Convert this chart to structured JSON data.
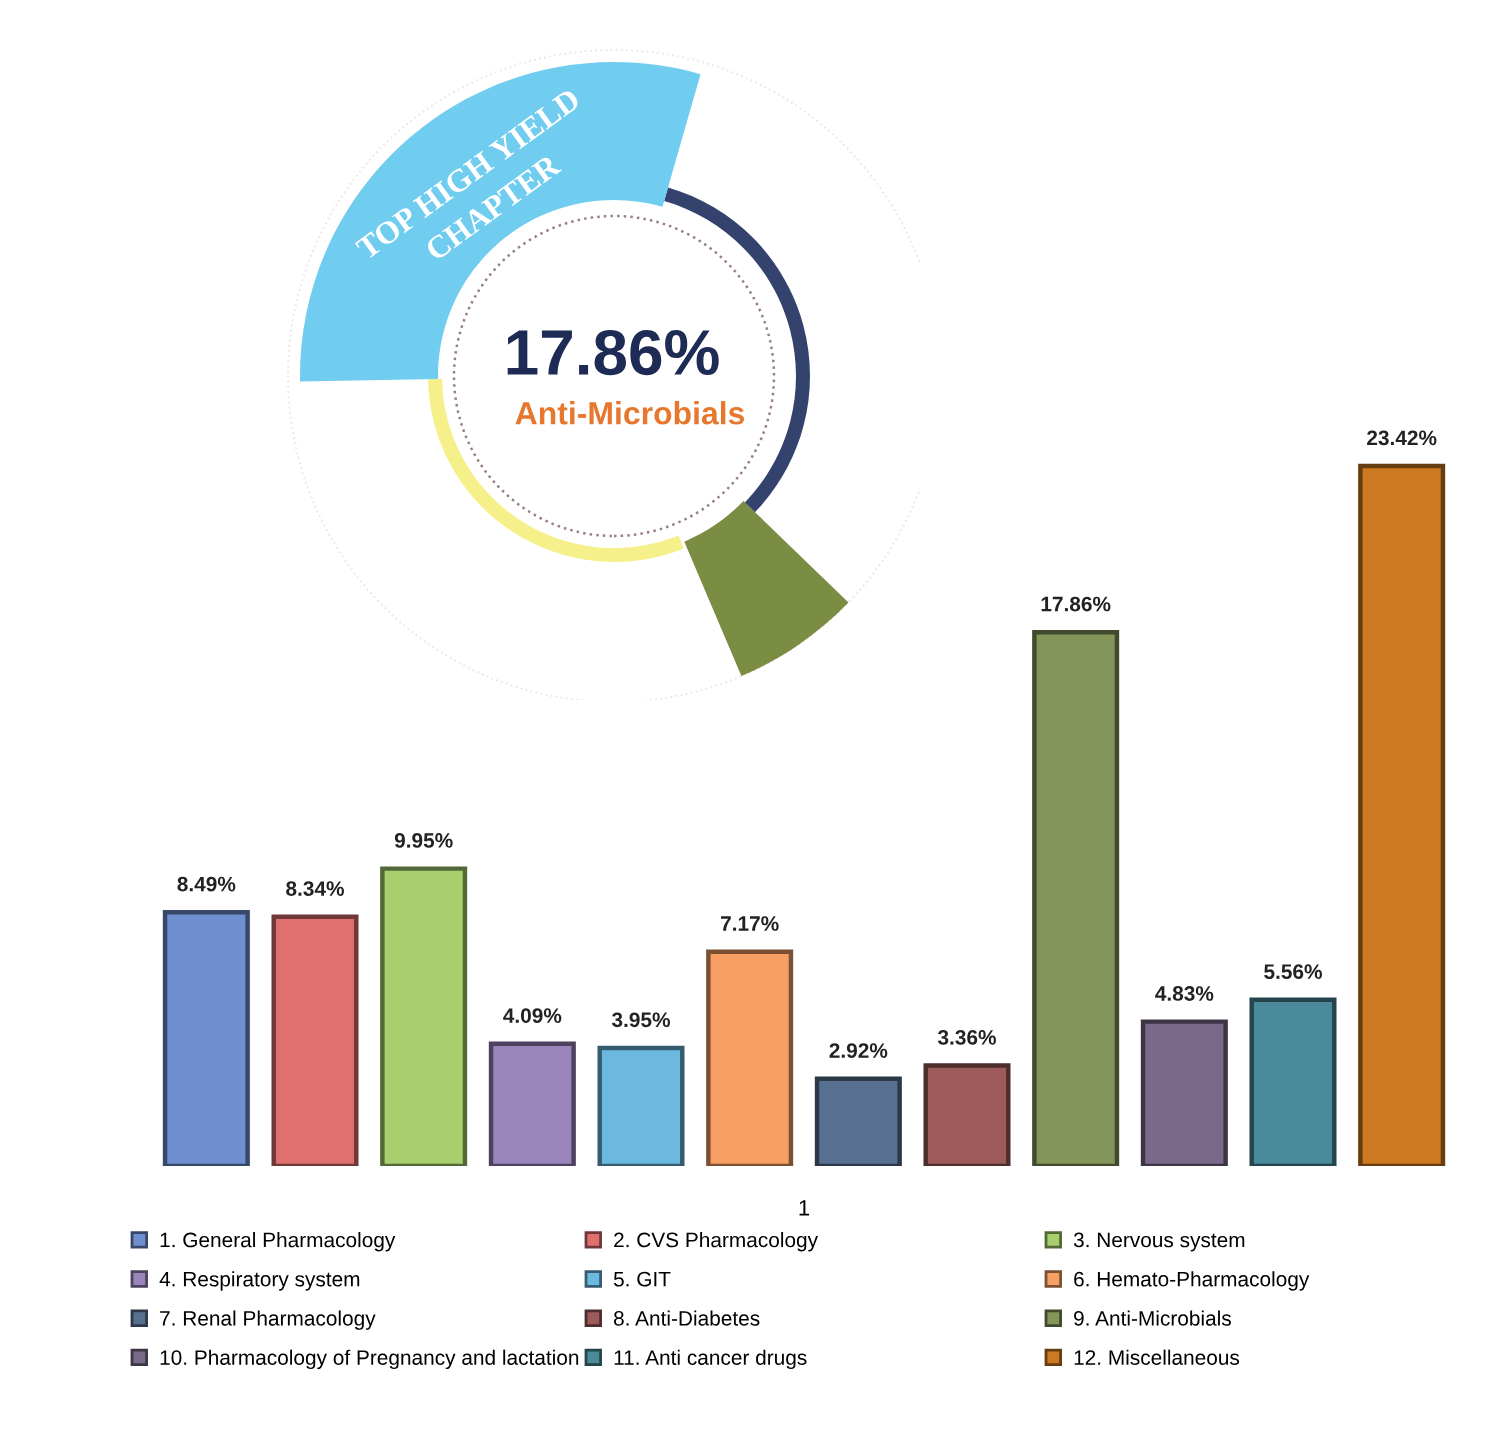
{
  "chart_data": {
    "type": "bar",
    "stacked": true,
    "xlabel": "1",
    "categories": [
      null,
      null,
      null,
      null,
      null,
      null,
      null,
      null,
      null,
      null,
      null,
      null
    ],
    "series": [
      {
        "name": "1. General Pharmacology",
        "color": "#6f8fd0",
        "values": [
          8.49,
          null,
          null,
          null,
          null,
          null,
          null,
          null,
          null,
          null,
          null,
          null
        ],
        "value_labels": [
          "8.49%",
          null,
          null,
          null,
          null,
          null,
          null,
          null,
          null,
          null,
          null,
          null
        ]
      },
      {
        "name": "2. CVS Pharmacology",
        "color": "#e07070",
        "values": [
          null,
          8.34,
          null,
          null,
          null,
          null,
          null,
          null,
          null,
          null,
          null,
          null
        ],
        "value_labels": [
          null,
          "8.34%",
          null,
          null,
          null,
          null,
          null,
          null,
          null,
          null,
          null,
          null
        ]
      },
      {
        "name": "3. Nervous system",
        "color": "#a8cf6e",
        "values": [
          null,
          null,
          9.95,
          null,
          null,
          null,
          null,
          null,
          null,
          null,
          null,
          null
        ],
        "value_labels": [
          null,
          null,
          "9.95%",
          null,
          null,
          null,
          null,
          null,
          null,
          null,
          null,
          null
        ]
      },
      {
        "name": "4. Respiratory system",
        "color": "#9a86bb",
        "values": [
          null,
          null,
          null,
          4.09,
          null,
          null,
          null,
          null,
          null,
          null,
          null,
          null
        ],
        "value_labels": [
          null,
          null,
          null,
          "4.09%",
          null,
          null,
          null,
          null,
          null,
          null,
          null,
          null
        ]
      },
      {
        "name": "5. GIT",
        "color": "#6cb9e0",
        "values": [
          null,
          null,
          null,
          null,
          3.95,
          null,
          null,
          null,
          null,
          null,
          null,
          null
        ],
        "value_labels": [
          null,
          null,
          null,
          null,
          "3.95%",
          null,
          null,
          null,
          null,
          null,
          null,
          null
        ]
      },
      {
        "name": "6. Hemato-Pharmacology",
        "color": "#f8a064",
        "values": [
          null,
          null,
          null,
          null,
          null,
          7.17,
          null,
          null,
          null,
          null,
          null,
          null
        ],
        "value_labels": [
          null,
          null,
          null,
          null,
          null,
          "7.17%",
          null,
          null,
          null,
          null,
          null,
          null
        ]
      },
      {
        "name": "7. Renal Pharmacology",
        "color": "#587090",
        "values": [
          null,
          null,
          null,
          null,
          null,
          null,
          2.92,
          null,
          null,
          null,
          null,
          null
        ],
        "value_labels": [
          null,
          null,
          null,
          null,
          null,
          null,
          "2.92%",
          null,
          null,
          null,
          null,
          null
        ]
      },
      {
        "name": "8. Anti-Diabetes",
        "color": "#9c5a5a",
        "values": [
          null,
          null,
          null,
          null,
          null,
          null,
          null,
          3.36,
          null,
          null,
          null,
          null
        ],
        "value_labels": [
          null,
          null,
          null,
          null,
          null,
          null,
          null,
          "3.36%",
          null,
          null,
          null,
          null
        ]
      },
      {
        "name": "9. Anti-Microbials",
        "color": "#84955a",
        "values": [
          null,
          null,
          null,
          null,
          null,
          null,
          null,
          null,
          17.86,
          null,
          null,
          null
        ],
        "value_labels": [
          null,
          null,
          null,
          null,
          null,
          null,
          null,
          null,
          "17.86%",
          null,
          null,
          null
        ]
      },
      {
        "name": "10. Pharmacology of Pregnancy and lactation",
        "color": "#7a6a8a",
        "values": [
          null,
          null,
          null,
          null,
          null,
          null,
          null,
          null,
          null,
          4.83,
          null,
          null
        ],
        "value_labels": [
          null,
          null,
          null,
          null,
          null,
          null,
          null,
          null,
          null,
          "4.83%",
          null,
          null
        ]
      },
      {
        "name": "11. Anti cancer drugs",
        "color": "#4a8a9a",
        "values": [
          null,
          null,
          null,
          null,
          null,
          null,
          null,
          null,
          null,
          null,
          5.56,
          null
        ],
        "value_labels": [
          null,
          null,
          null,
          null,
          null,
          null,
          null,
          null,
          null,
          null,
          "5.56%",
          null
        ]
      },
      {
        "name": "12. Miscellaneous",
        "color": "#cc7a22",
        "values": [
          null,
          null,
          null,
          null,
          null,
          null,
          null,
          null,
          null,
          null,
          null,
          23.42
        ],
        "value_labels": [
          null,
          null,
          null,
          null,
          null,
          null,
          null,
          null,
          null,
          null,
          null,
          "23.42%"
        ]
      }
    ],
    "annotations": [
      "TOP HIGH YIELD",
      "CHAPTER",
      "17.86%",
      "Anti-Microbials"
    ],
    "legend": "bottom"
  }
}
